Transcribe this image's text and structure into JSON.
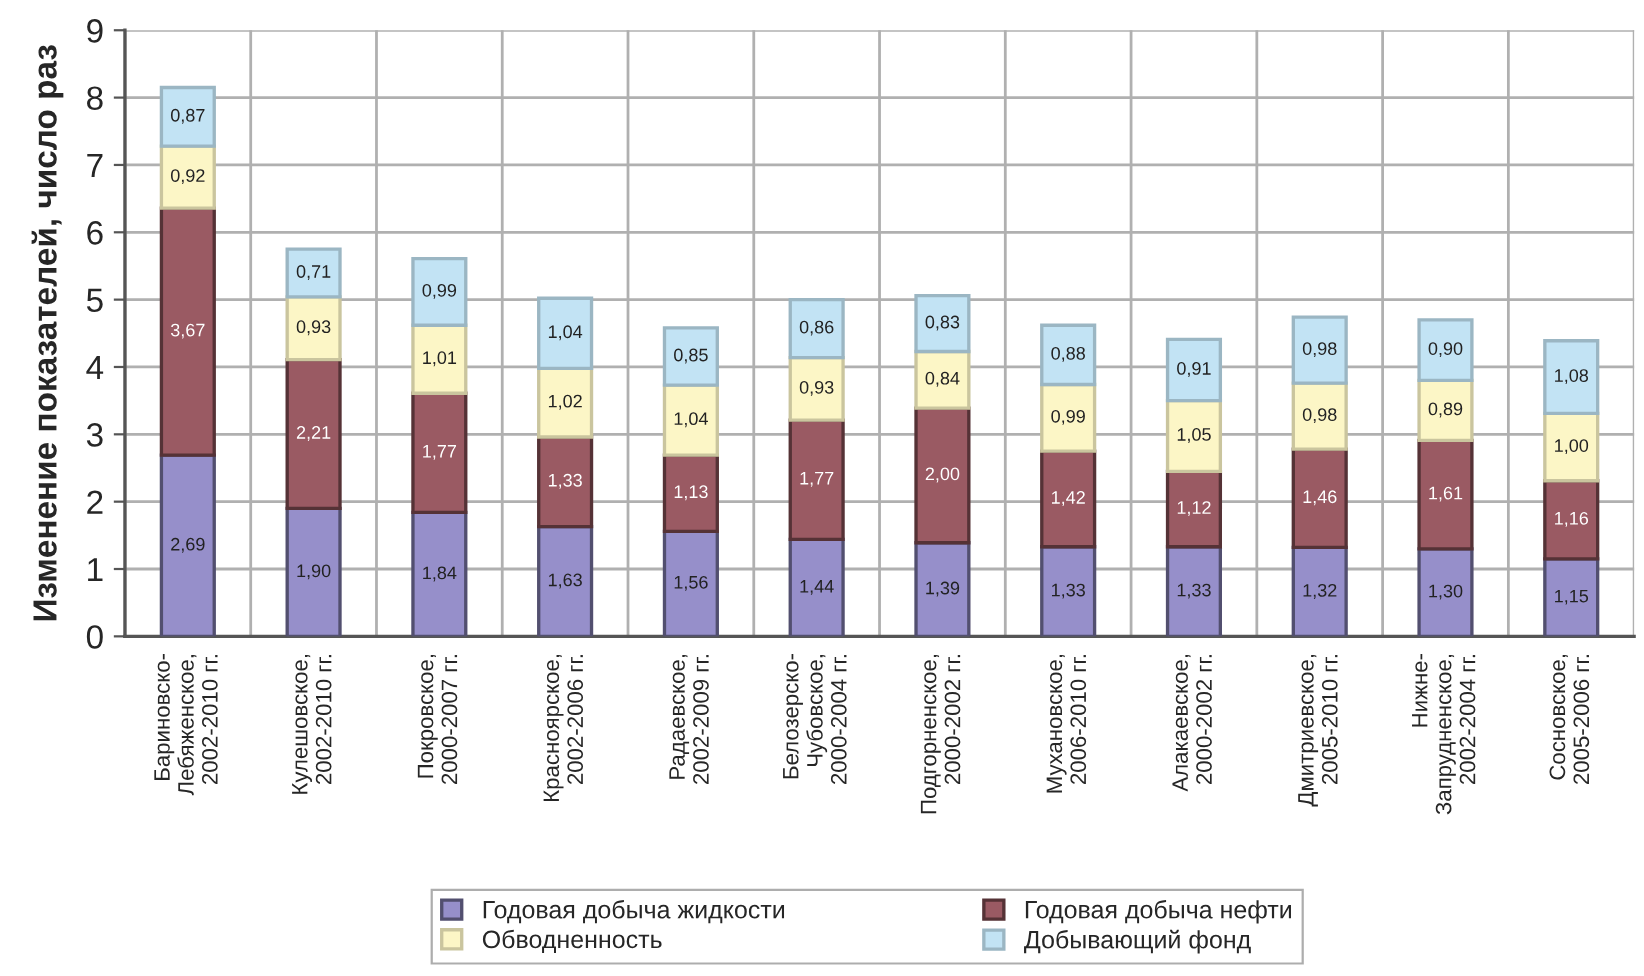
{
  "chart_data": {
    "type": "bar",
    "stacked": true,
    "ylabel": "Изменение показателей, число раз",
    "categories": [
      "Бариновско-\nЛебяженское,\n2002-2010 гг.",
      "Кулешовское,\n2002-2010 гг.",
      "Покровское,\n2000-2007 гг.",
      "Красноярское,\n2002-2006 гг.",
      "Радаевское,\n2002-2009 гг.",
      "Белозерско-\nЧубовское,\n2000-2004 гг.",
      "Подгорненское,\n2000-2002 гг.",
      "Мухановское,\n2006-2010 гг.",
      "Алакаевское,\n2000-2002 гг.",
      "Дмитриевское,\n2005-2010 гг.",
      "Нижне-\nЗапрудненское,\n2002-2004 гг.",
      "Сосновское,\n2005-2006 гг."
    ],
    "series": [
      {
        "name": "Годовая добыча жидкости",
        "color": "#968fca",
        "values": [
          2.69,
          1.9,
          1.84,
          1.63,
          1.56,
          1.44,
          1.39,
          1.33,
          1.33,
          1.32,
          1.3,
          1.15
        ],
        "value_labels": [
          "2,69",
          "1,90",
          "1,84",
          "1,63",
          "1,56",
          "1,44",
          "1,39",
          "1,33",
          "1,33",
          "1,32",
          "1,30",
          "1,15"
        ]
      },
      {
        "name": "Годовая добыча нефти",
        "color": "#9a5a63",
        "values": [
          3.67,
          2.21,
          1.77,
          1.33,
          1.13,
          1.77,
          2.0,
          1.42,
          1.12,
          1.46,
          1.61,
          1.16
        ],
        "value_labels": [
          "3,67",
          "2,21",
          "1,77",
          "1,33",
          "1,13",
          "1,77",
          "2,00",
          "1,42",
          "1,12",
          "1,46",
          "1,61",
          "1,16"
        ]
      },
      {
        "name": "Обводненность",
        "color": "#fcf6c6",
        "values": [
          0.92,
          0.93,
          1.01,
          1.02,
          1.04,
          0.93,
          0.84,
          0.99,
          1.05,
          0.98,
          0.89,
          1.0
        ],
        "value_labels": [
          "0,92",
          "0,93",
          "1,01",
          "1,02",
          "1,04",
          "0,93",
          "0,84",
          "0,99",
          "1,05",
          "0,98",
          "0,89",
          "1,00"
        ]
      },
      {
        "name": "Добывающий фонд",
        "color": "#c2e3f4",
        "values": [
          0.87,
          0.71,
          0.99,
          1.04,
          0.85,
          0.86,
          0.83,
          0.88,
          0.91,
          0.98,
          0.9,
          1.08
        ],
        "value_labels": [
          "0,87",
          "0,71",
          "0,99",
          "1,04",
          "0,85",
          "0,86",
          "0,83",
          "0,88",
          "0,91",
          "0,98",
          "0,90",
          "1,08"
        ]
      }
    ],
    "ylim": [
      0,
      9
    ],
    "yticks": [
      0,
      1,
      2,
      3,
      4,
      5,
      6,
      7,
      8,
      9
    ],
    "grid": true,
    "legend": "bottom"
  }
}
